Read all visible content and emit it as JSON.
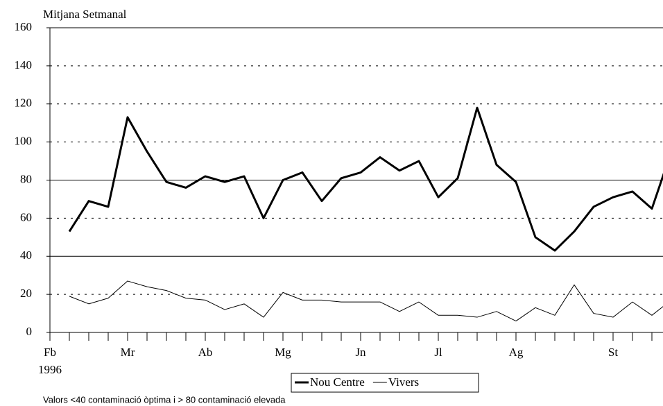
{
  "chart_data": {
    "type": "line",
    "y_axis_title": "Mitjana Setmanal",
    "categories": [
      "Fb",
      null,
      null,
      null,
      "Mr",
      null,
      null,
      null,
      "Ab",
      null,
      null,
      null,
      "Mg",
      null,
      null,
      null,
      "Jn",
      null,
      null,
      null,
      "Jl",
      null,
      null,
      null,
      "Ag",
      null,
      null,
      null,
      null,
      "St",
      null,
      null,
      null
    ],
    "year_label": "1996",
    "series": [
      {
        "name": "Nou Centre",
        "color": "#000000",
        "width": 3,
        "values": [
          null,
          53,
          69,
          66,
          113,
          95,
          79,
          76,
          82,
          79,
          82,
          60,
          80,
          84,
          69,
          81,
          84,
          92,
          85,
          90,
          71,
          81,
          118,
          88,
          79,
          50,
          43,
          53,
          66,
          71,
          74,
          65,
          95
        ]
      },
      {
        "name": "Vivers",
        "color": "#000000",
        "width": 1,
        "values": [
          null,
          19,
          15,
          18,
          27,
          24,
          22,
          18,
          17,
          12,
          15,
          8,
          21,
          17,
          17,
          16,
          16,
          16,
          11,
          16,
          9,
          9,
          8,
          11,
          6,
          13,
          9,
          25,
          10,
          8,
          16,
          9,
          17
        ]
      }
    ],
    "ylim": [
      0,
      160
    ],
    "yticks": [
      0,
      20,
      40,
      60,
      80,
      100,
      120,
      140,
      160
    ],
    "grid": true,
    "solid_lines": [
      40,
      80,
      160
    ],
    "legend": "bottom",
    "footnote": "Valors <40 contaminació òptima i > 80 contaminació elevada"
  }
}
